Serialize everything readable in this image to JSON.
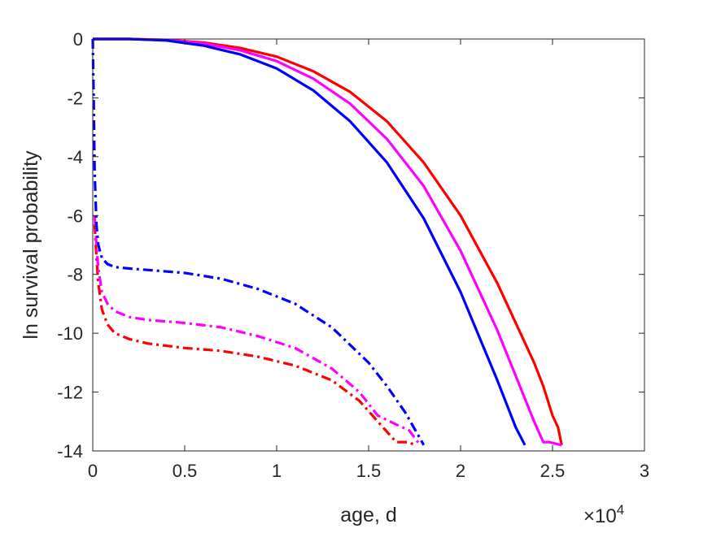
{
  "chart_data": {
    "type": "line",
    "title": "",
    "xlabel": "age, d",
    "ylabel": "ln survival probability",
    "x_multiplier": {
      "base": "×10",
      "exponent": "4"
    },
    "xlim": [
      0,
      3
    ],
    "ylim": [
      -14,
      0
    ],
    "x_ticks": [
      "0",
      "0.5",
      "1",
      "1.5",
      "2",
      "2.5",
      "3"
    ],
    "y_ticks": [
      "0",
      "-2",
      "-4",
      "-6",
      "-8",
      "-10",
      "-12",
      "-14"
    ],
    "grid": false,
    "legend": "none",
    "series": [
      {
        "color": "#ff0000",
        "style": "solid",
        "x": [
          0,
          0.2,
          0.4,
          0.6,
          0.8,
          1.0,
          1.2,
          1.4,
          1.6,
          1.8,
          2.0,
          2.2,
          2.4,
          2.45,
          2.5,
          2.53,
          2.55
        ],
        "y": [
          0,
          0,
          -0.03,
          -0.12,
          -0.3,
          -0.6,
          -1.1,
          -1.8,
          -2.8,
          -4.2,
          -6.0,
          -8.3,
          -11.0,
          -11.8,
          -12.8,
          -13.2,
          -13.8
        ]
      },
      {
        "color": "#ff00ff",
        "style": "solid",
        "x": [
          0,
          0.2,
          0.4,
          0.6,
          0.8,
          1.0,
          1.2,
          1.4,
          1.6,
          1.8,
          2.0,
          2.2,
          2.4,
          2.45,
          2.48,
          2.55
        ],
        "y": [
          0,
          0,
          -0.04,
          -0.15,
          -0.38,
          -0.75,
          -1.35,
          -2.2,
          -3.4,
          -5.0,
          -7.2,
          -9.9,
          -13.0,
          -13.7,
          -13.7,
          -13.8
        ]
      },
      {
        "color": "#0000ff",
        "style": "solid",
        "x": [
          0,
          0.2,
          0.4,
          0.6,
          0.8,
          1.0,
          1.2,
          1.4,
          1.6,
          1.8,
          2.0,
          2.2,
          2.3,
          2.35
        ],
        "y": [
          0,
          0,
          -0.05,
          -0.22,
          -0.52,
          -1.0,
          -1.75,
          -2.8,
          -4.2,
          -6.1,
          -8.6,
          -11.6,
          -13.2,
          -13.8
        ]
      },
      {
        "color": "#ff0000",
        "style": "dashdot",
        "x": [
          0.01,
          0.02,
          0.03,
          0.05,
          0.08,
          0.12,
          0.2,
          0.3,
          0.5,
          0.7,
          0.9,
          1.1,
          1.3,
          1.45,
          1.55,
          1.65,
          1.68,
          1.72,
          1.75
        ],
        "y": [
          -6.3,
          -7.4,
          -8.3,
          -9.2,
          -9.7,
          -10.0,
          -10.2,
          -10.35,
          -10.5,
          -10.6,
          -10.8,
          -11.1,
          -11.6,
          -12.3,
          -13.0,
          -13.7,
          -13.7,
          -13.7,
          -13.8
        ]
      },
      {
        "color": "#ff00ff",
        "style": "dashdot",
        "x": [
          0.01,
          0.02,
          0.03,
          0.05,
          0.08,
          0.12,
          0.2,
          0.3,
          0.5,
          0.7,
          0.9,
          1.1,
          1.3,
          1.45,
          1.55,
          1.65,
          1.72,
          1.78
        ],
        "y": [
          -6.0,
          -7.0,
          -7.8,
          -8.6,
          -9.0,
          -9.25,
          -9.45,
          -9.55,
          -9.65,
          -9.8,
          -10.1,
          -10.5,
          -11.2,
          -12.0,
          -12.8,
          -13.1,
          -13.3,
          -13.8
        ]
      },
      {
        "color": "#0000ff",
        "style": "dashdot",
        "x": [
          0.0,
          0.005,
          0.01,
          0.02,
          0.03,
          0.05,
          0.08,
          0.12,
          0.2,
          0.3,
          0.5,
          0.7,
          0.9,
          1.1,
          1.3,
          1.5,
          1.6,
          1.7,
          1.8
        ],
        "y": [
          0,
          -2.0,
          -4.5,
          -6.3,
          -7.0,
          -7.45,
          -7.65,
          -7.75,
          -7.8,
          -7.85,
          -7.95,
          -8.15,
          -8.5,
          -9.0,
          -9.8,
          -11.0,
          -11.8,
          -12.7,
          -13.8
        ]
      }
    ]
  }
}
